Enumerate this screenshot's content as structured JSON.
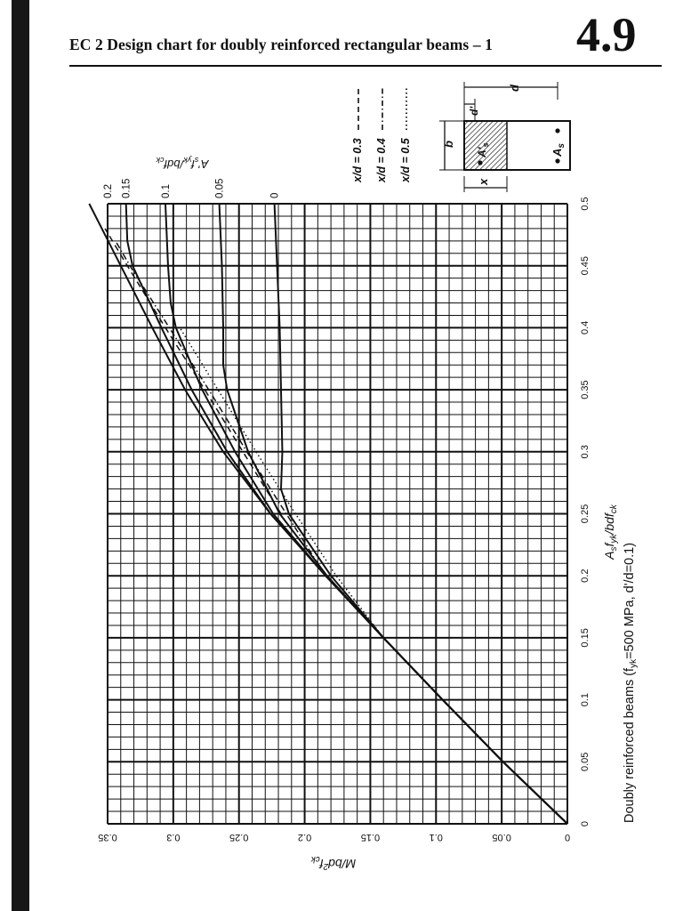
{
  "page": {
    "title": "EC 2 Design chart for doubly reinforced rectangular beams – 1",
    "number": "4.9"
  },
  "chart_data": {
    "type": "line",
    "title": "",
    "caption": "Doubly reinforced beams (f",
    "caption_sub": "yk",
    "caption_tail": "=500 MPa, d'/d=0.1)",
    "xlabel": "A",
    "xlabel_sub1": "s",
    "xlabel_mid": "f",
    "xlabel_sub2": "yk",
    "xlabel_mid2": "/bdf",
    "xlabel_sub3": "ck",
    "ylabel": "M/bd",
    "ylabel_sup": "2",
    "ylabel_mid": "f",
    "ylabel_sub": "ck",
    "curve_family_label": "A'",
    "curve_family_label_sub1": "s",
    "curve_family_label_mid": "f",
    "curve_family_label_sub2": "yk",
    "curve_family_label_tail": "/bdf",
    "curve_family_label_sub3": "ck",
    "xlim": [
      0,
      0.5
    ],
    "ylim": [
      0,
      0.35
    ],
    "x_ticks": [
      "0",
      "0.05",
      "0.1",
      "0.15",
      "0.2",
      "0.25",
      "0.3",
      "0.35",
      "0.4",
      "0.45",
      "0.5"
    ],
    "y_ticks": [
      "0",
      "0.05",
      "0.1",
      "0.15",
      "0.2",
      "0.25",
      "0.3",
      "0.35"
    ],
    "grid": true,
    "orientation": "rotated 90° clockwise",
    "legend": {
      "placement": "top-right",
      "entries": [
        {
          "label": "x/d = 0.3",
          "dash": "long"
        },
        {
          "label": "x/d = 0.4",
          "dash": "dash-dot"
        },
        {
          "label": "x/d = 0.5",
          "dash": "dotted"
        }
      ]
    },
    "series": [
      {
        "name": "0",
        "style": "solid",
        "x": [
          0,
          0.05,
          0.1,
          0.15,
          0.2,
          0.25,
          0.27,
          0.3,
          0.35,
          0.4,
          0.45,
          0.5
        ],
        "y": [
          0,
          0.049,
          0.095,
          0.14,
          0.18,
          0.212,
          0.218,
          0.217,
          0.218,
          0.219,
          0.221,
          0.223
        ]
      },
      {
        "name": "0.05",
        "style": "solid",
        "x": [
          0,
          0.05,
          0.1,
          0.15,
          0.2,
          0.25,
          0.3,
          0.35,
          0.37,
          0.4,
          0.45,
          0.5
        ],
        "y": [
          0,
          0.049,
          0.095,
          0.14,
          0.183,
          0.219,
          0.243,
          0.259,
          0.262,
          0.262,
          0.263,
          0.265
        ]
      },
      {
        "name": "0.1",
        "style": "solid",
        "x": [
          0,
          0.05,
          0.1,
          0.15,
          0.2,
          0.25,
          0.3,
          0.35,
          0.4,
          0.42,
          0.45,
          0.5
        ],
        "y": [
          0,
          0.049,
          0.095,
          0.14,
          0.184,
          0.224,
          0.253,
          0.278,
          0.298,
          0.302,
          0.304,
          0.306
        ]
      },
      {
        "name": "0.15",
        "style": "solid",
        "x": [
          0,
          0.05,
          0.1,
          0.15,
          0.2,
          0.25,
          0.3,
          0.35,
          0.4,
          0.45,
          0.47,
          0.5
        ],
        "y": [
          0,
          0.049,
          0.095,
          0.14,
          0.184,
          0.226,
          0.259,
          0.286,
          0.309,
          0.331,
          0.335,
          0.336
        ]
      },
      {
        "name": "0.2",
        "style": "solid",
        "x": [
          0,
          0.05,
          0.1,
          0.15,
          0.2,
          0.25,
          0.3,
          0.35,
          0.4,
          0.45,
          0.5
        ],
        "y": [
          0,
          0.049,
          0.095,
          0.14,
          0.184,
          0.226,
          0.262,
          0.291,
          0.316,
          0.34,
          0.364
        ]
      },
      {
        "name": "x/d = 0.3",
        "style": "long",
        "x": [
          0.25,
          0.3,
          0.35,
          0.4,
          0.45,
          0.48
        ],
        "y": [
          0.218,
          0.247,
          0.276,
          0.306,
          0.335,
          0.352
        ]
      },
      {
        "name": "x/d = 0.4",
        "style": "dash-dot",
        "x": [
          0.2,
          0.25,
          0.3,
          0.35,
          0.4,
          0.45,
          0.47
        ],
        "y": [
          0.184,
          0.214,
          0.244,
          0.273,
          0.303,
          0.333,
          0.344
        ]
      },
      {
        "name": "x/d = 0.5",
        "style": "dotted",
        "x": [
          0.15,
          0.2,
          0.25,
          0.3,
          0.35,
          0.4
        ],
        "y": [
          0.14,
          0.176,
          0.207,
          0.237,
          0.266,
          0.295
        ]
      }
    ],
    "curve_labels": [
      "0",
      "0.05",
      "0.1",
      "0.15",
      "0.2"
    ]
  },
  "inset": {
    "b": "b",
    "d": "d",
    "d_prime": "d'",
    "x": "x",
    "As": "A",
    "As_sub": "s",
    "As_prime": "A'",
    "As_prime_sub": "s"
  }
}
